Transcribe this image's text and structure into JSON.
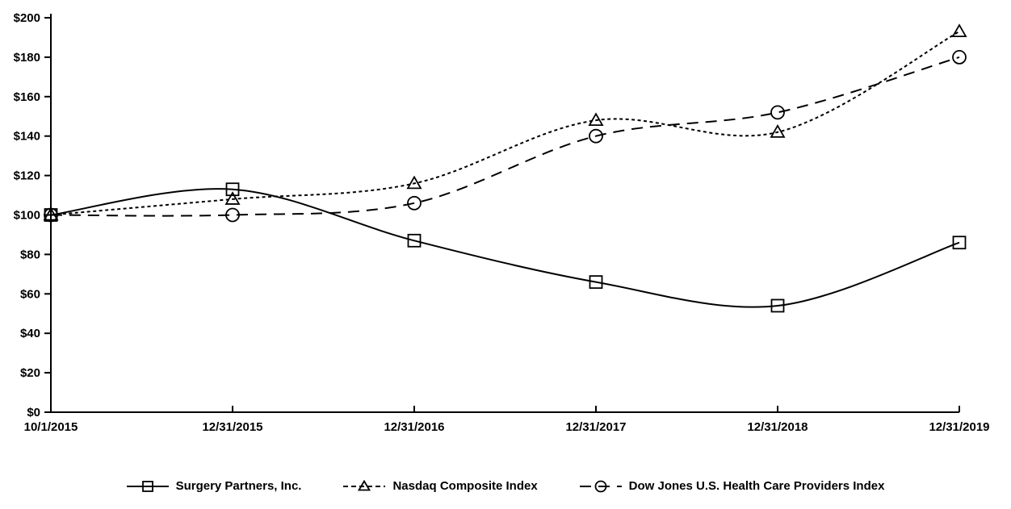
{
  "chart_data": {
    "type": "line",
    "title": "",
    "xlabel": "",
    "ylabel": "",
    "categories": [
      "10/1/2015",
      "12/31/2015",
      "12/31/2016",
      "12/31/2017",
      "12/31/2018",
      "12/31/2019"
    ],
    "series": [
      {
        "name": "Surgery Partners, Inc.",
        "marker": "square",
        "line_style": "solid",
        "values": [
          100,
          113,
          87,
          66,
          54,
          86
        ]
      },
      {
        "name": "Nasdaq Composite Index",
        "marker": "triangle",
        "line_style": "dotted",
        "values": [
          100,
          108,
          116,
          148,
          142,
          193
        ]
      },
      {
        "name": "Dow Jones U.S. Health Care Providers Index",
        "marker": "circle",
        "line_style": "dashed",
        "values": [
          100,
          100,
          106,
          140,
          152,
          180
        ]
      }
    ],
    "ylim": [
      0,
      200
    ],
    "ytick_step": 20,
    "ytick_prefix": "$",
    "grid": false,
    "smoothed": true,
    "legend_position": "bottom",
    "line_color": "#000000",
    "background_color": "#ffffff"
  }
}
